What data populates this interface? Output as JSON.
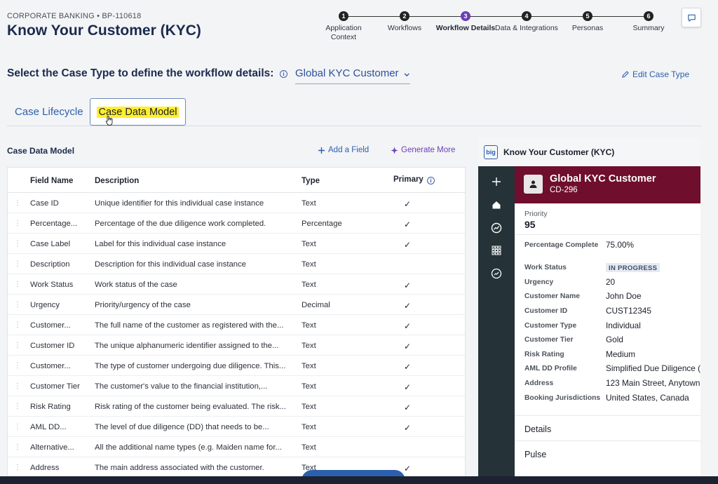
{
  "header": {
    "breadcrumb": "CORPORATE BANKING • BP-110618",
    "title": "Know Your Customer (KYC)"
  },
  "stepper": {
    "steps": [
      {
        "num": "1",
        "label": "Application Context",
        "active": false
      },
      {
        "num": "2",
        "label": "Workflows",
        "active": false
      },
      {
        "num": "3",
        "label": "Workflow Details",
        "active": true
      },
      {
        "num": "4",
        "label": "Data & Integrations",
        "active": false
      },
      {
        "num": "5",
        "label": "Personas",
        "active": false
      },
      {
        "num": "6",
        "label": "Summary",
        "active": false
      }
    ],
    "active_color": "#6b3fb8"
  },
  "case_type": {
    "prompt": "Select the Case Type to define the workflow details:",
    "selected": "Global KYC Customer",
    "edit_label": "Edit Case Type"
  },
  "tabs": {
    "lifecycle": "Case Lifecycle",
    "data_model": "Case Data Model",
    "highlight_color": "#ffef2e"
  },
  "data_model": {
    "title": "Case Data Model",
    "add_field": "Add a Field",
    "generate_more": "Generate More",
    "columns": {
      "name": "Field Name",
      "description": "Description",
      "type": "Type",
      "primary": "Primary"
    },
    "rows": [
      {
        "name": "Case ID",
        "description": "Unique identifier for this individual case instance",
        "type": "Text",
        "primary": "✓"
      },
      {
        "name": "Percentage...",
        "description": "Percentage of the due diligence work completed.",
        "type": "Percentage",
        "primary": "✓"
      },
      {
        "name": "Case Label",
        "description": "Label for this individual case instance",
        "type": "Text",
        "primary": "✓"
      },
      {
        "name": "Description",
        "description": "Description for this individual case instance",
        "type": "Text",
        "primary": ""
      },
      {
        "name": "Work Status",
        "description": "Work status of the case",
        "type": "Text",
        "primary": "✓"
      },
      {
        "name": "Urgency",
        "description": "Priority/urgency of the case",
        "type": "Decimal",
        "primary": "✓"
      },
      {
        "name": "Customer...",
        "description": "The full name of the customer as registered with the...",
        "type": "Text",
        "primary": "✓"
      },
      {
        "name": "Customer ID",
        "description": "The unique alphanumeric identifier assigned to the...",
        "type": "Text",
        "primary": "✓"
      },
      {
        "name": "Customer...",
        "description": "The type of customer undergoing due diligence. This...",
        "type": "Text",
        "primary": "✓"
      },
      {
        "name": "Customer Tier",
        "description": "The customer's value to the financial institution,...",
        "type": "Text",
        "primary": "✓"
      },
      {
        "name": "Risk Rating",
        "description": "Risk rating of the customer being evaluated. The risk...",
        "type": "Text",
        "primary": "✓"
      },
      {
        "name": "AML DD...",
        "description": "The level of due diligence (DD) that needs to be...",
        "type": "Text",
        "primary": "✓"
      },
      {
        "name": "Alternative...",
        "description": "All the additional name types (e.g. Maiden name for...",
        "type": "Text",
        "primary": ""
      },
      {
        "name": "Address",
        "description": "The main address associated with the customer.",
        "type": "Text",
        "primary": "✓"
      }
    ]
  },
  "preview": {
    "app_title": "Know Your Customer (KYC)",
    "logo_text": "big",
    "case_name": "Global KYC Customer",
    "case_id": "CD-296",
    "banner_color": "#6f0e2d",
    "priority_label": "Priority",
    "priority_value": "95",
    "fields": [
      {
        "label": "Percentage Complete",
        "value": "75.00%"
      },
      {
        "label": "Work Status",
        "value": "IN PROGRESS"
      },
      {
        "label": "Urgency",
        "value": "20"
      },
      {
        "label": "Customer Name",
        "value": "John Doe"
      },
      {
        "label": "Customer ID",
        "value": "CUST12345"
      },
      {
        "label": "Customer Type",
        "value": "Individual"
      },
      {
        "label": "Customer Tier",
        "value": "Gold"
      },
      {
        "label": "Risk Rating",
        "value": "Medium"
      },
      {
        "label": "AML DD Profile",
        "value": "Simplified Due Diligence (S"
      },
      {
        "label": "Address",
        "value": "123 Main Street, Anytown,"
      },
      {
        "label": "Booking Jurisdictions",
        "value": "United States, Canada"
      }
    ],
    "sections": [
      "Details",
      "Pulse"
    ]
  }
}
